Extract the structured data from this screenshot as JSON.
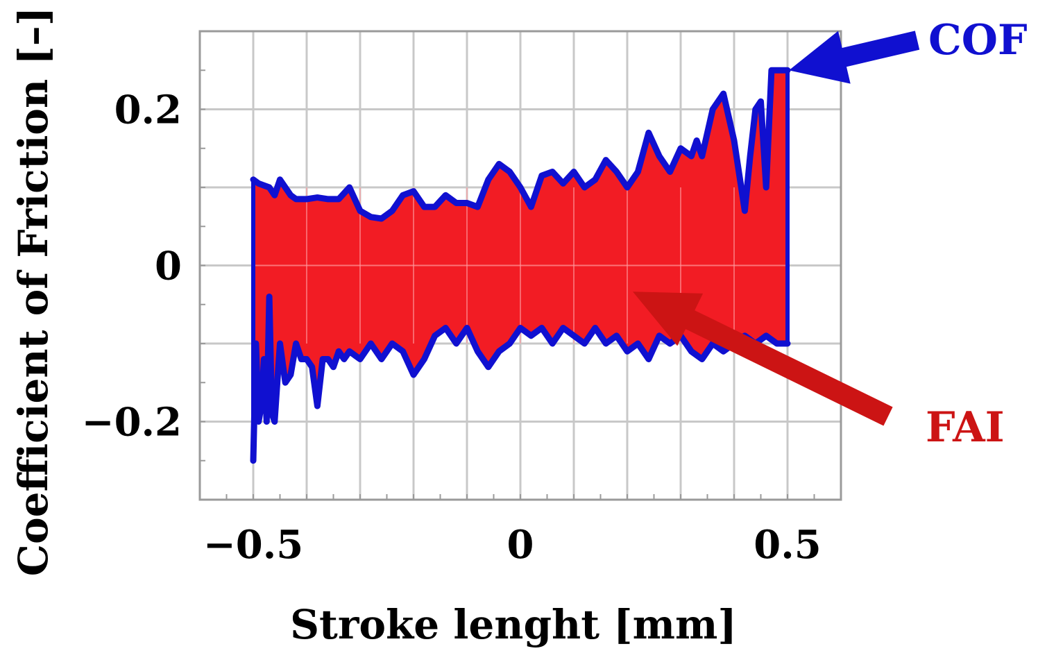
{
  "chart_data": {
    "type": "area",
    "xlabel": "Stroke lenght [mm]",
    "ylabel": "Coefficient of Friction [–]",
    "xlim": [
      -0.6,
      0.6
    ],
    "ylim": [
      -0.3,
      0.3
    ],
    "x_ticks": [
      {
        "value": -0.5,
        "label": "−0.5"
      },
      {
        "value": 0,
        "label": "0"
      },
      {
        "value": 0.5,
        "label": "0.5"
      }
    ],
    "y_ticks": [
      {
        "value": 0.2,
        "label": "0.2"
      },
      {
        "value": 0,
        "label": "0"
      },
      {
        "value": -0.2,
        "label": "−0.2"
      }
    ],
    "grid": true,
    "colors": {
      "cof": "#1010d0",
      "fai": "#f21c24",
      "fai_arrow": "#cc1414"
    },
    "series": [
      {
        "name": "COF",
        "role": "upper",
        "x": [
          -0.5,
          -0.49,
          -0.47,
          -0.46,
          -0.45,
          -0.43,
          -0.42,
          -0.4,
          -0.38,
          -0.36,
          -0.34,
          -0.32,
          -0.3,
          -0.28,
          -0.26,
          -0.24,
          -0.22,
          -0.2,
          -0.18,
          -0.16,
          -0.14,
          -0.12,
          -0.1,
          -0.08,
          -0.06,
          -0.04,
          -0.02,
          0.0,
          0.02,
          0.04,
          0.06,
          0.08,
          0.1,
          0.12,
          0.14,
          0.16,
          0.18,
          0.2,
          0.22,
          0.24,
          0.26,
          0.28,
          0.3,
          0.32,
          0.33,
          0.34,
          0.36,
          0.38,
          0.4,
          0.42,
          0.43,
          0.44,
          0.45,
          0.46,
          0.47,
          0.48,
          0.49,
          0.5
        ],
        "values": [
          0.11,
          0.105,
          0.1,
          0.09,
          0.11,
          0.09,
          0.085,
          0.085,
          0.087,
          0.085,
          0.085,
          0.1,
          0.07,
          0.062,
          0.06,
          0.07,
          0.09,
          0.095,
          0.075,
          0.075,
          0.09,
          0.08,
          0.08,
          0.075,
          0.11,
          0.13,
          0.12,
          0.1,
          0.075,
          0.115,
          0.12,
          0.105,
          0.12,
          0.1,
          0.11,
          0.135,
          0.12,
          0.1,
          0.12,
          0.17,
          0.14,
          0.12,
          0.15,
          0.14,
          0.16,
          0.14,
          0.2,
          0.22,
          0.16,
          0.07,
          0.14,
          0.2,
          0.21,
          0.1,
          0.25,
          0.25,
          0.25,
          0.25
        ]
      },
      {
        "name": "",
        "role": "lower",
        "x": [
          -0.5,
          -0.495,
          -0.49,
          -0.485,
          -0.48,
          -0.475,
          -0.47,
          -0.465,
          -0.46,
          -0.455,
          -0.45,
          -0.44,
          -0.43,
          -0.42,
          -0.41,
          -0.4,
          -0.39,
          -0.38,
          -0.37,
          -0.36,
          -0.35,
          -0.34,
          -0.33,
          -0.32,
          -0.3,
          -0.28,
          -0.26,
          -0.24,
          -0.22,
          -0.2,
          -0.18,
          -0.16,
          -0.14,
          -0.12,
          -0.1,
          -0.08,
          -0.06,
          -0.04,
          -0.02,
          0.0,
          0.02,
          0.04,
          0.06,
          0.08,
          0.1,
          0.12,
          0.14,
          0.16,
          0.18,
          0.2,
          0.22,
          0.24,
          0.26,
          0.28,
          0.3,
          0.32,
          0.34,
          0.36,
          0.38,
          0.4,
          0.42,
          0.44,
          0.46,
          0.48,
          0.5
        ],
        "values": [
          -0.25,
          -0.1,
          -0.2,
          -0.18,
          -0.12,
          -0.2,
          -0.04,
          -0.19,
          -0.2,
          -0.15,
          -0.1,
          -0.15,
          -0.14,
          -0.1,
          -0.12,
          -0.12,
          -0.13,
          -0.18,
          -0.12,
          -0.12,
          -0.13,
          -0.11,
          -0.12,
          -0.11,
          -0.12,
          -0.1,
          -0.12,
          -0.1,
          -0.11,
          -0.14,
          -0.12,
          -0.09,
          -0.08,
          -0.1,
          -0.08,
          -0.11,
          -0.13,
          -0.11,
          -0.1,
          -0.08,
          -0.09,
          -0.08,
          -0.1,
          -0.08,
          -0.09,
          -0.1,
          -0.08,
          -0.1,
          -0.09,
          -0.11,
          -0.1,
          -0.12,
          -0.09,
          -0.1,
          -0.09,
          -0.11,
          -0.12,
          -0.1,
          -0.11,
          -0.1,
          -0.09,
          -0.1,
          -0.09,
          -0.1,
          -0.1
        ]
      }
    ],
    "annotations": [
      {
        "name": "COF",
        "text": "COF",
        "color": "#1010d0",
        "points_to": [
          0.5,
          0.25
        ]
      },
      {
        "name": "FAI",
        "text": "FAI",
        "color": "#cc1414",
        "points_to": [
          0.2,
          -0.03
        ]
      }
    ]
  }
}
